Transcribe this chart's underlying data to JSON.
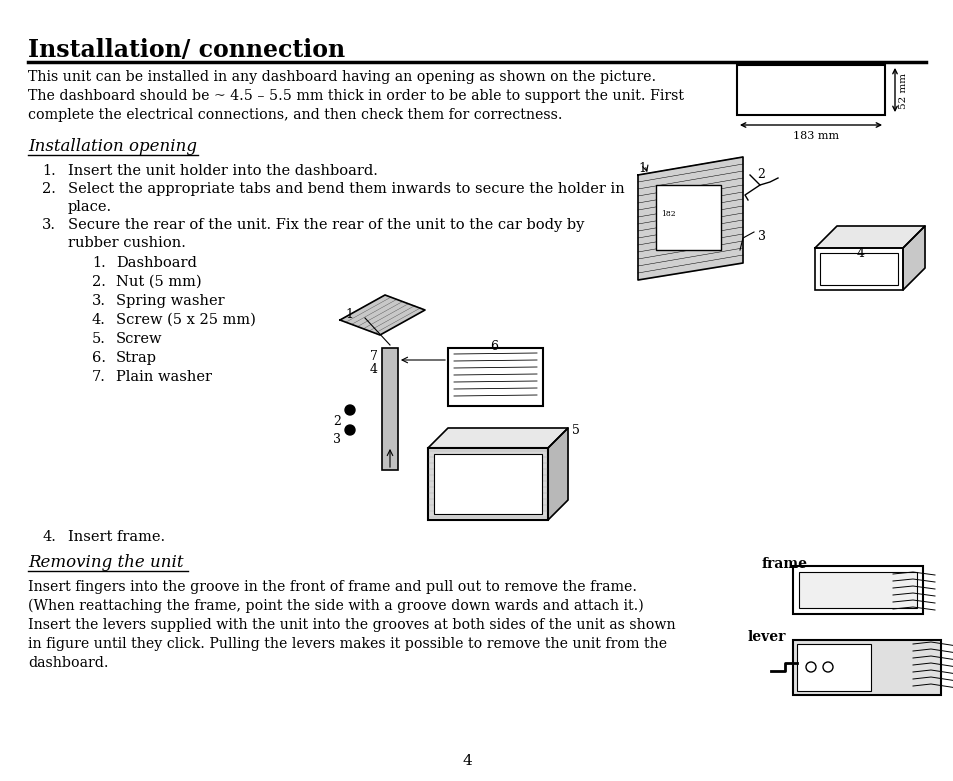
{
  "title": "Installation/ connection",
  "bg_color": "#ffffff",
  "text_color": "#000000",
  "intro_text_lines": [
    "This unit can be installed in any dashboard having an opening as shown on the picture.",
    "The dashboard should be ~ 4.5 – 5.5 mm thick in order to be able to support the unit. First",
    "complete the electrical connections, and then check them for correctness."
  ],
  "section1_title": "Installation opening",
  "items": [
    "Insert the unit holder into the dashboard.",
    "Select the appropriate tabs and bend them inwards to secure the holder in",
    "place.",
    "Secure the rear of the unit. Fix the rear of the unit to the car body by",
    "rubber cushion.",
    "Insert frame."
  ],
  "subitems": [
    "Dashboard",
    "Nut (5 mm)",
    "Spring washer",
    "Screw (5 x 25 mm)",
    "Screw",
    "Strap",
    "Plain washer"
  ],
  "section2_title": "Removing the unit",
  "remove_lines": [
    "Insert fingers into the groove in the front of frame and pull out to remove the frame.",
    "(When reattaching the frame, point the side with a groove down wards and attach it.)",
    "Insert the levers supplied with the unit into the grooves at both sides of the unit as shown",
    "in figure until they click. Pulling the levers makes it possible to remove the unit from the",
    "dashboard."
  ],
  "page_number": "4",
  "dim_183": "183 mm",
  "dim_52": "52 mm",
  "frame_label": "frame",
  "lever_label": "lever"
}
